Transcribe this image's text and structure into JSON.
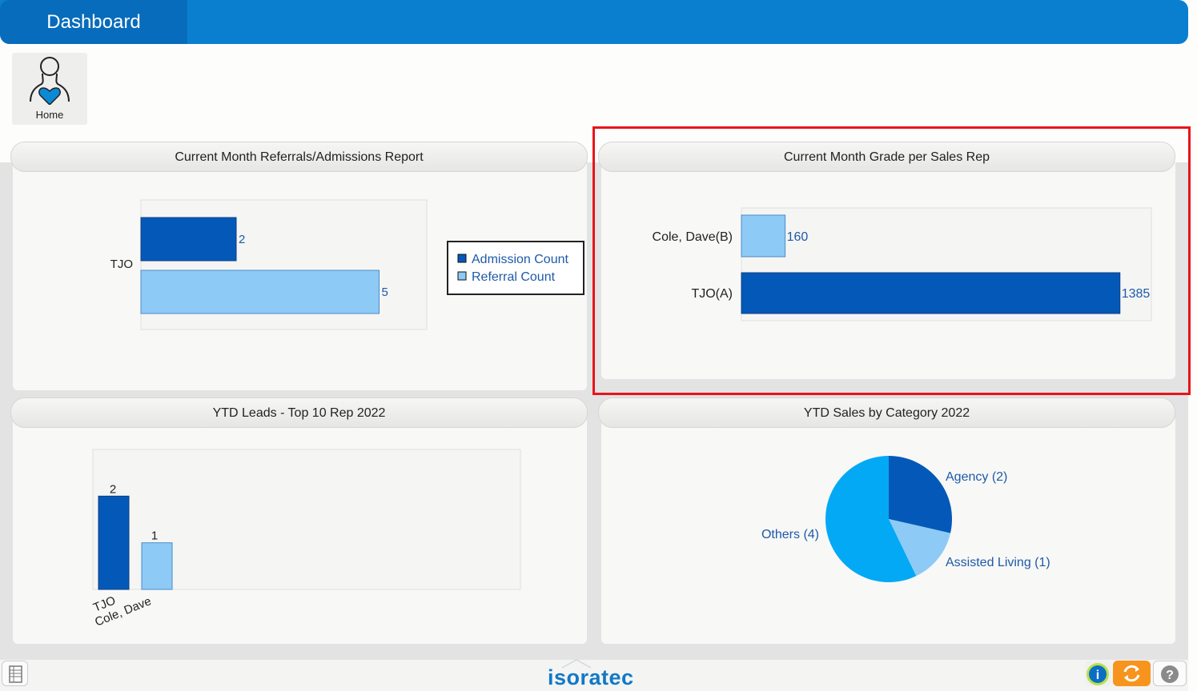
{
  "header": {
    "title": "Dashboard"
  },
  "home_tile": {
    "label": "Home"
  },
  "panels": {
    "referrals": {
      "title": "Current Month Referrals/Admissions Report"
    },
    "grade": {
      "title": "Current Month Grade per Sales Rep"
    },
    "leads": {
      "title": "YTD Leads - Top 10 Rep 2022"
    },
    "sales": {
      "title": "YTD Sales by Category 2022"
    }
  },
  "footer": {
    "logo": "isoratec",
    "info_label": "i",
    "help_label": "?"
  },
  "colors": {
    "dark_blue": "#0459b8",
    "light_blue": "#8dcaf6",
    "cyan": "#03a9f4",
    "highlight": "#e8141c",
    "header": "#0a7fd0"
  },
  "chart_data": [
    {
      "type": "bar",
      "orientation": "horizontal",
      "categories": [
        "TJO"
      ],
      "series": [
        {
          "name": "Admission Count",
          "values": [
            2
          ],
          "color": "#0459b8"
        },
        {
          "name": "Referral Count",
          "values": [
            5
          ],
          "color": "#8dcaf6"
        }
      ],
      "legend": "right",
      "xlim": [
        0,
        6
      ]
    },
    {
      "type": "bar",
      "orientation": "horizontal",
      "categories": [
        "Cole, Dave(B)",
        "TJO(A)"
      ],
      "values": [
        160,
        1385
      ],
      "colors": [
        "#8dcaf6",
        "#0459b8"
      ],
      "xlim": [
        0,
        1500
      ]
    },
    {
      "type": "bar",
      "categories": [
        "TJO",
        "Cole, Dave"
      ],
      "values": [
        2,
        1
      ],
      "colors": [
        "#0459b8",
        "#8dcaf6"
      ],
      "ylim": [
        0,
        2.4
      ]
    },
    {
      "type": "pie",
      "slices": [
        {
          "label": "Agency (2)",
          "value": 2,
          "color": "#0459b8"
        },
        {
          "label": "Assisted Living (1)",
          "value": 1,
          "color": "#8dcaf6"
        },
        {
          "label": "Others (4)",
          "value": 4,
          "color": "#03a9f4"
        }
      ]
    }
  ]
}
